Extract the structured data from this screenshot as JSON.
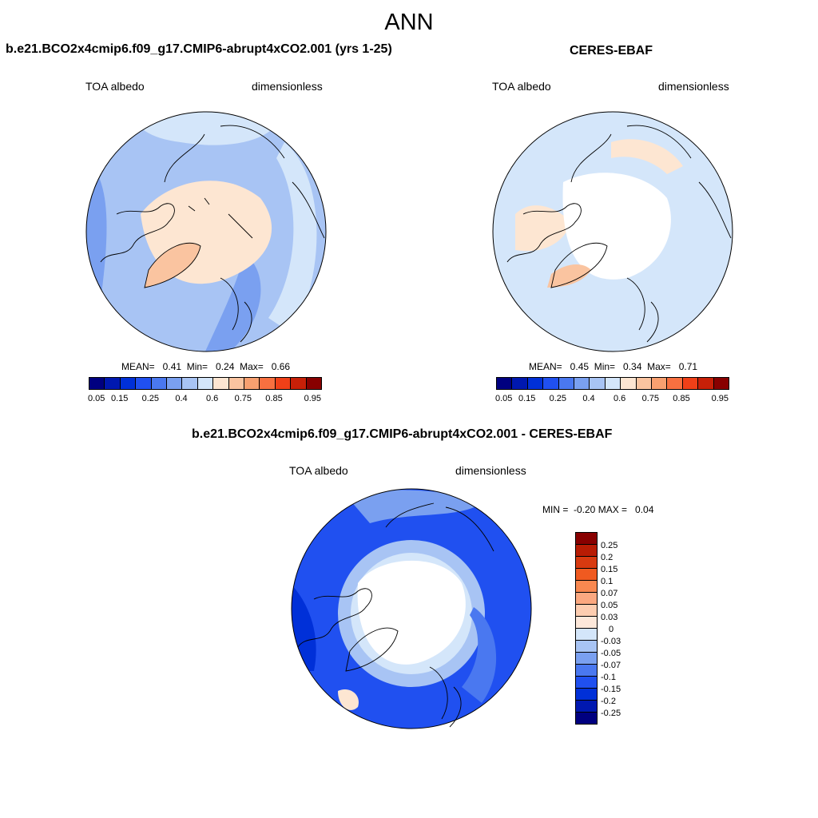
{
  "figure": {
    "title": "ANN"
  },
  "panels": {
    "model": {
      "title": "b.e21.BCO2x4cmip6.f09_g17.CMIP6-abrupt4xCO2.001 (yrs 1-25)",
      "left_label": "TOA albedo",
      "right_label": "dimensionless",
      "stats": "MEAN=   0.41  Min=   0.24  Max=   0.66"
    },
    "obs": {
      "title": "CERES-EBAF",
      "left_label": "TOA albedo",
      "right_label": "dimensionless",
      "stats": "MEAN=   0.45  Min=   0.34  Max=   0.71"
    },
    "diff": {
      "title": "b.e21.BCO2x4cmip6.f09_g17.CMIP6-abrupt4xCO2.001 - CERES-EBAF",
      "left_label": "TOA albedo",
      "right_label": "dimensionless",
      "stats": "MIN =  -0.20 MAX =   0.04"
    }
  },
  "colorbar_main": {
    "colors": [
      "#000080",
      "#0018b0",
      "#0030d8",
      "#2050f0",
      "#4a78f0",
      "#7aa0f0",
      "#a8c4f4",
      "#d4e6fa",
      "#fde6d2",
      "#fac4a0",
      "#f8a070",
      "#f87040",
      "#f04018",
      "#c82008",
      "#880000"
    ],
    "labels": [
      "0.05",
      "0.15",
      "0.25",
      "0.4",
      "0.6",
      "0.75",
      "0.85",
      "0.95"
    ]
  },
  "colorbar_diff": {
    "colors": [
      "#880000",
      "#b81c04",
      "#d83a10",
      "#f05a20",
      "#f88850",
      "#fba880",
      "#fdcdb0",
      "#fde8da",
      "#d4e6fa",
      "#a8c4f4",
      "#7aa0f0",
      "#4a78f0",
      "#2050f0",
      "#0030d8",
      "#0018b0",
      "#000080"
    ],
    "labels": [
      "0.25",
      "0.2",
      "0.15",
      "0.1",
      "0.07",
      "0.05",
      "0.03",
      "0",
      "-0.03",
      "-0.05",
      "-0.07",
      "-0.1",
      "-0.15",
      "-0.2",
      "-0.25"
    ]
  },
  "chart_data": [
    {
      "type": "heatmap",
      "title": "b.e21.BCO2x4cmip6.f09_g17.CMIP6-abrupt4xCO2.001 (yrs 1-25)",
      "variable": "TOA albedo",
      "units": "dimensionless",
      "projection": "north polar stereographic",
      "mean": 0.41,
      "min": 0.24,
      "max": 0.66,
      "levels": [
        0.05,
        0.1,
        0.15,
        0.2,
        0.25,
        0.3,
        0.4,
        0.5,
        0.6,
        0.7,
        0.75,
        0.8,
        0.85,
        0.9,
        0.95
      ]
    },
    {
      "type": "heatmap",
      "title": "CERES-EBAF",
      "variable": "TOA albedo",
      "units": "dimensionless",
      "projection": "north polar stereographic",
      "mean": 0.45,
      "min": 0.34,
      "max": 0.71,
      "levels": [
        0.05,
        0.1,
        0.15,
        0.2,
        0.25,
        0.3,
        0.4,
        0.5,
        0.6,
        0.7,
        0.75,
        0.8,
        0.85,
        0.9,
        0.95
      ]
    },
    {
      "type": "heatmap",
      "title": "b.e21.BCO2x4cmip6.f09_g17.CMIP6-abrupt4xCO2.001 - CERES-EBAF",
      "variable": "TOA albedo",
      "units": "dimensionless",
      "projection": "north polar stereographic",
      "min": -0.2,
      "max": 0.04,
      "levels": [
        -0.25,
        -0.2,
        -0.15,
        -0.1,
        -0.07,
        -0.05,
        -0.03,
        0,
        0.03,
        0.05,
        0.07,
        0.1,
        0.15,
        0.2,
        0.25
      ]
    }
  ]
}
